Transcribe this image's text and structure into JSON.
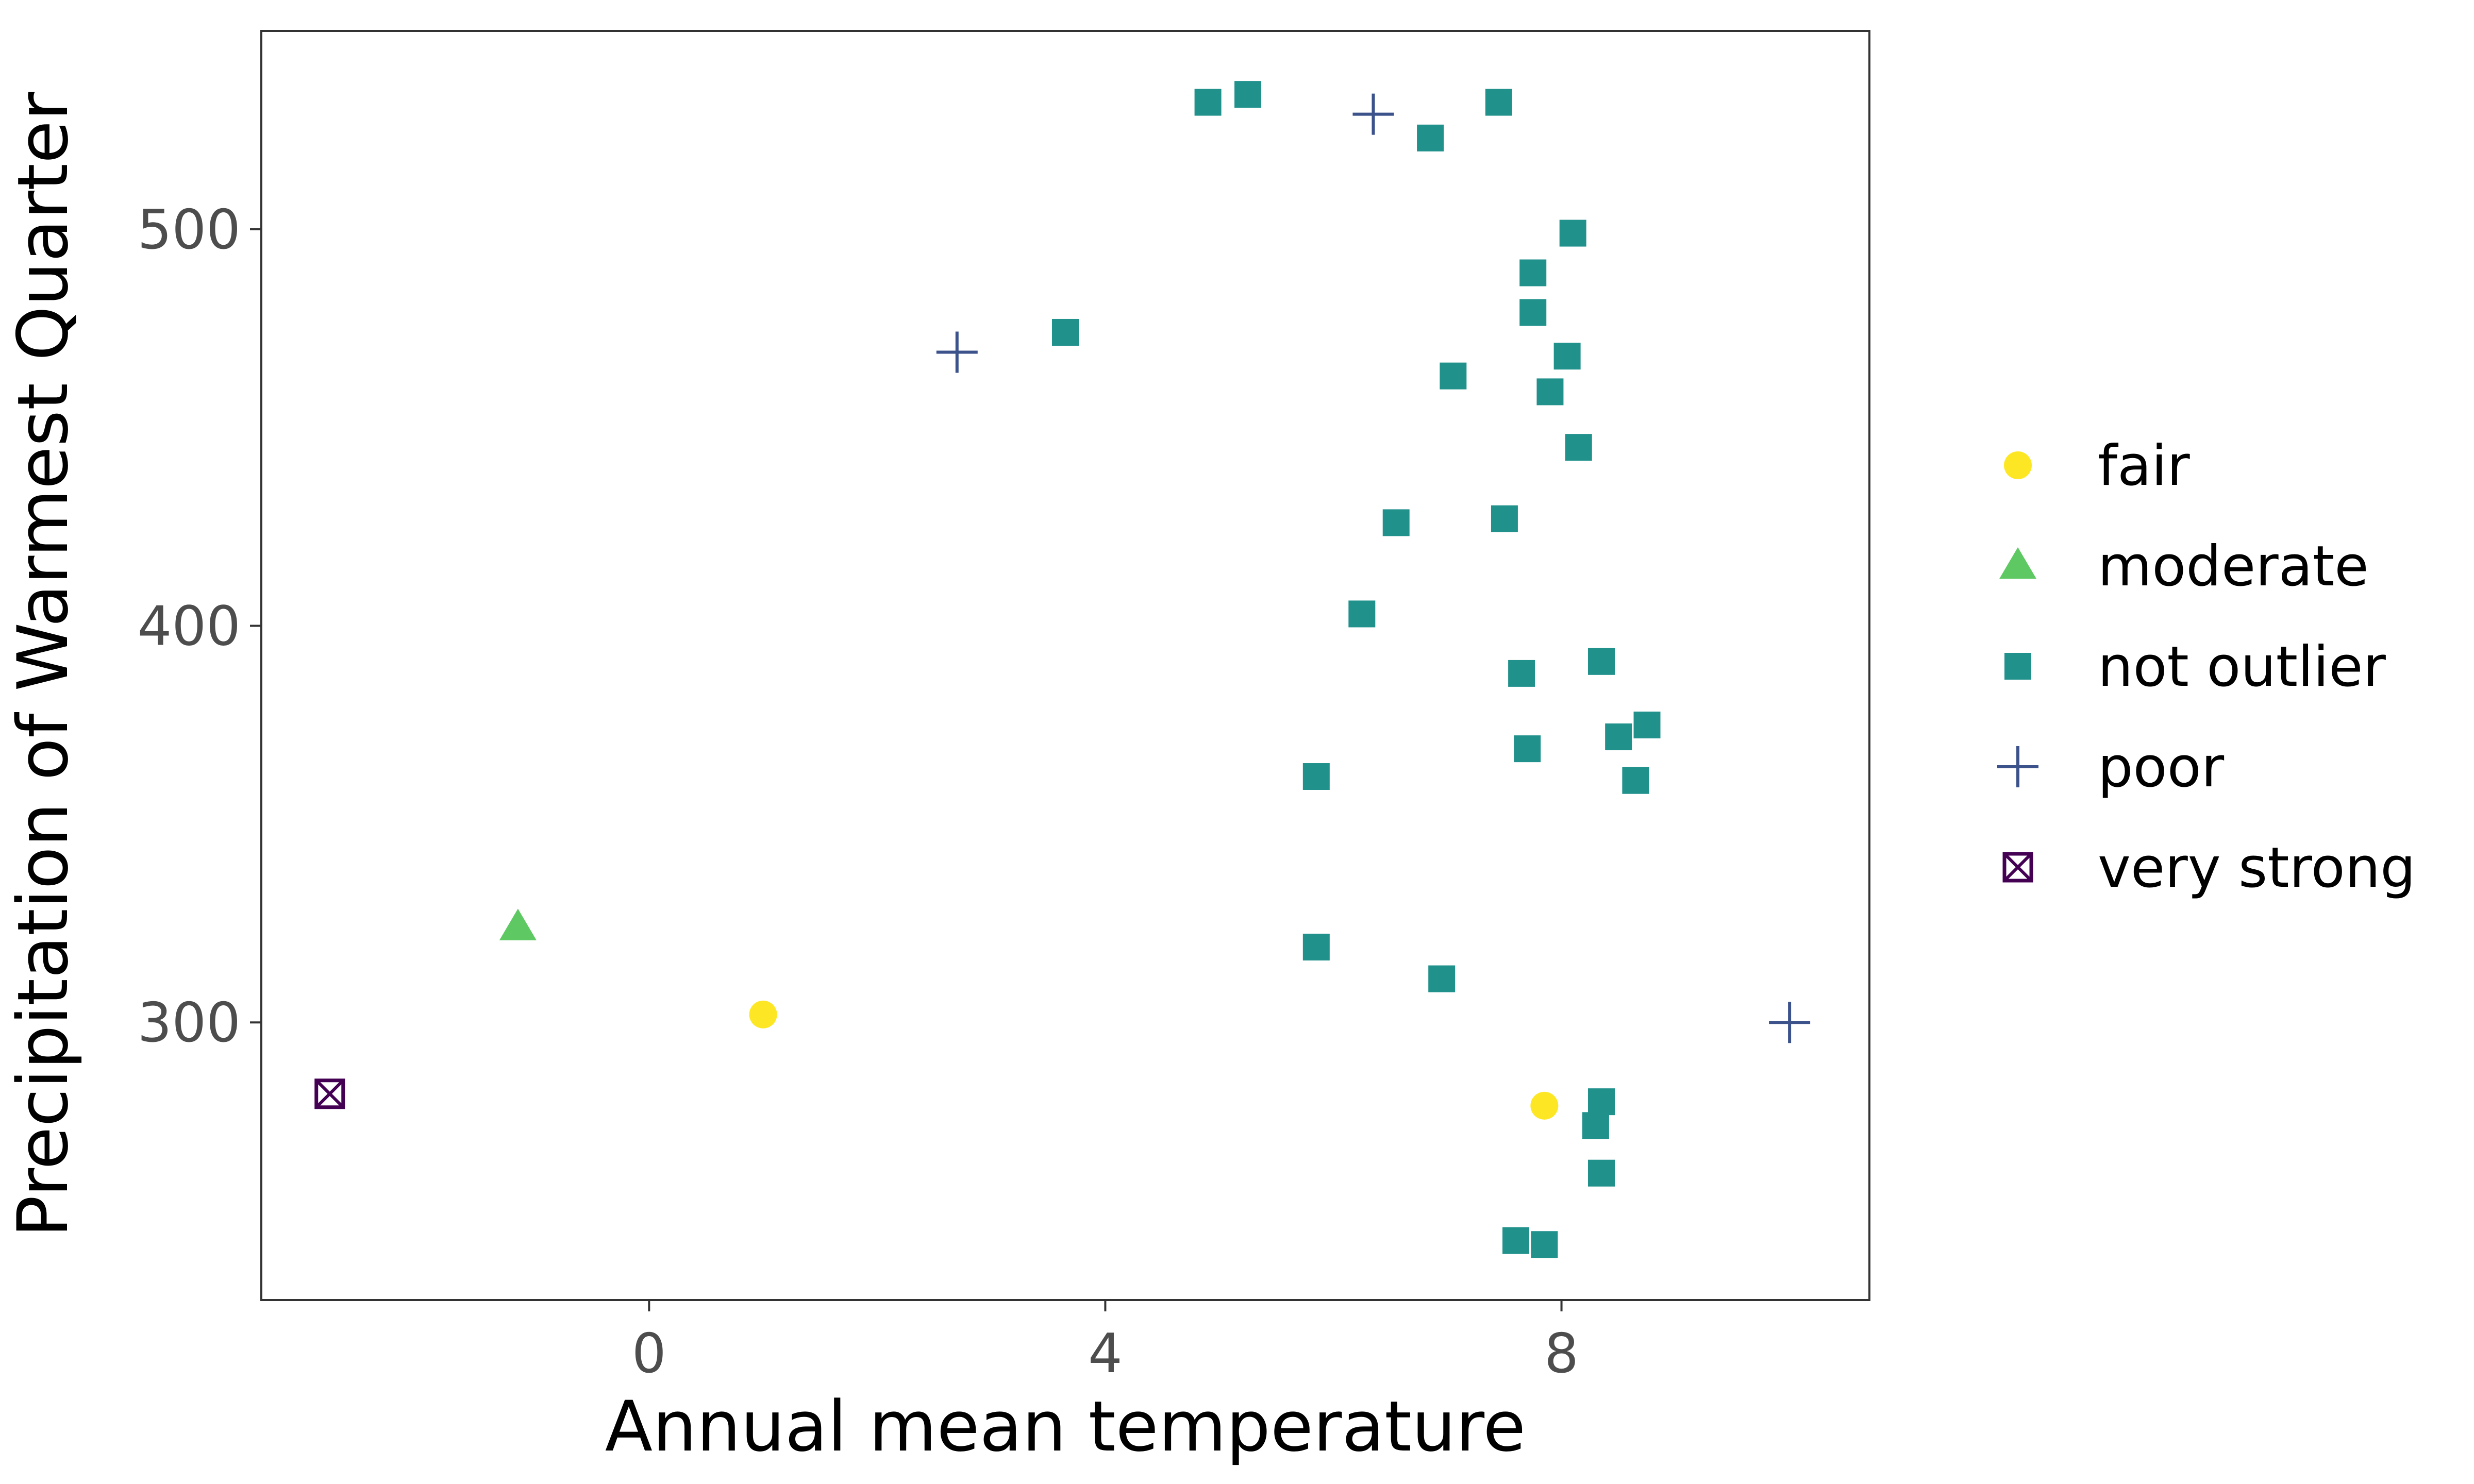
{
  "chart_data": {
    "type": "scatter",
    "xlabel": "Annual mean temperature",
    "ylabel": "Precipitation of Warmest Quarter",
    "xlim": [
      -3.4,
      10.7
    ],
    "ylim": [
      230,
      550
    ],
    "x_ticks": [
      0,
      4,
      8
    ],
    "y_ticks": [
      300,
      400,
      500
    ],
    "grid": false,
    "legend_position": "right",
    "series": [
      {
        "name": "fair",
        "marker": "circle",
        "color": "#FDE725",
        "points": [
          [
            1.0,
            302
          ],
          [
            7.85,
            279
          ]
        ]
      },
      {
        "name": "moderate",
        "marker": "triangle",
        "color": "#5EC962",
        "points": [
          [
            -1.15,
            324
          ]
        ]
      },
      {
        "name": "not outlier",
        "marker": "square",
        "color": "#21918C",
        "points": [
          [
            4.9,
            532
          ],
          [
            5.25,
            534
          ],
          [
            6.85,
            523
          ],
          [
            7.45,
            532
          ],
          [
            8.1,
            499
          ],
          [
            7.75,
            489
          ],
          [
            7.75,
            479
          ],
          [
            3.65,
            474
          ],
          [
            8.05,
            468
          ],
          [
            7.05,
            463
          ],
          [
            7.9,
            459
          ],
          [
            8.15,
            445
          ],
          [
            6.55,
            426
          ],
          [
            7.5,
            427
          ],
          [
            6.25,
            403
          ],
          [
            8.35,
            391
          ],
          [
            7.65,
            388
          ],
          [
            8.75,
            375
          ],
          [
            8.5,
            372
          ],
          [
            7.7,
            369
          ],
          [
            5.85,
            362
          ],
          [
            8.65,
            361
          ],
          [
            5.85,
            319
          ],
          [
            6.95,
            311
          ],
          [
            8.35,
            280
          ],
          [
            8.3,
            274
          ],
          [
            8.35,
            262
          ],
          [
            7.6,
            245
          ],
          [
            7.85,
            244
          ]
        ]
      },
      {
        "name": "poor",
        "marker": "plus",
        "color": "#3B528B",
        "points": [
          [
            6.35,
            529
          ],
          [
            2.7,
            469
          ],
          [
            10.0,
            300
          ]
        ]
      },
      {
        "name": "very strong",
        "marker": "boxcross",
        "color": "#440154",
        "points": [
          [
            -2.8,
            282
          ]
        ]
      }
    ]
  }
}
